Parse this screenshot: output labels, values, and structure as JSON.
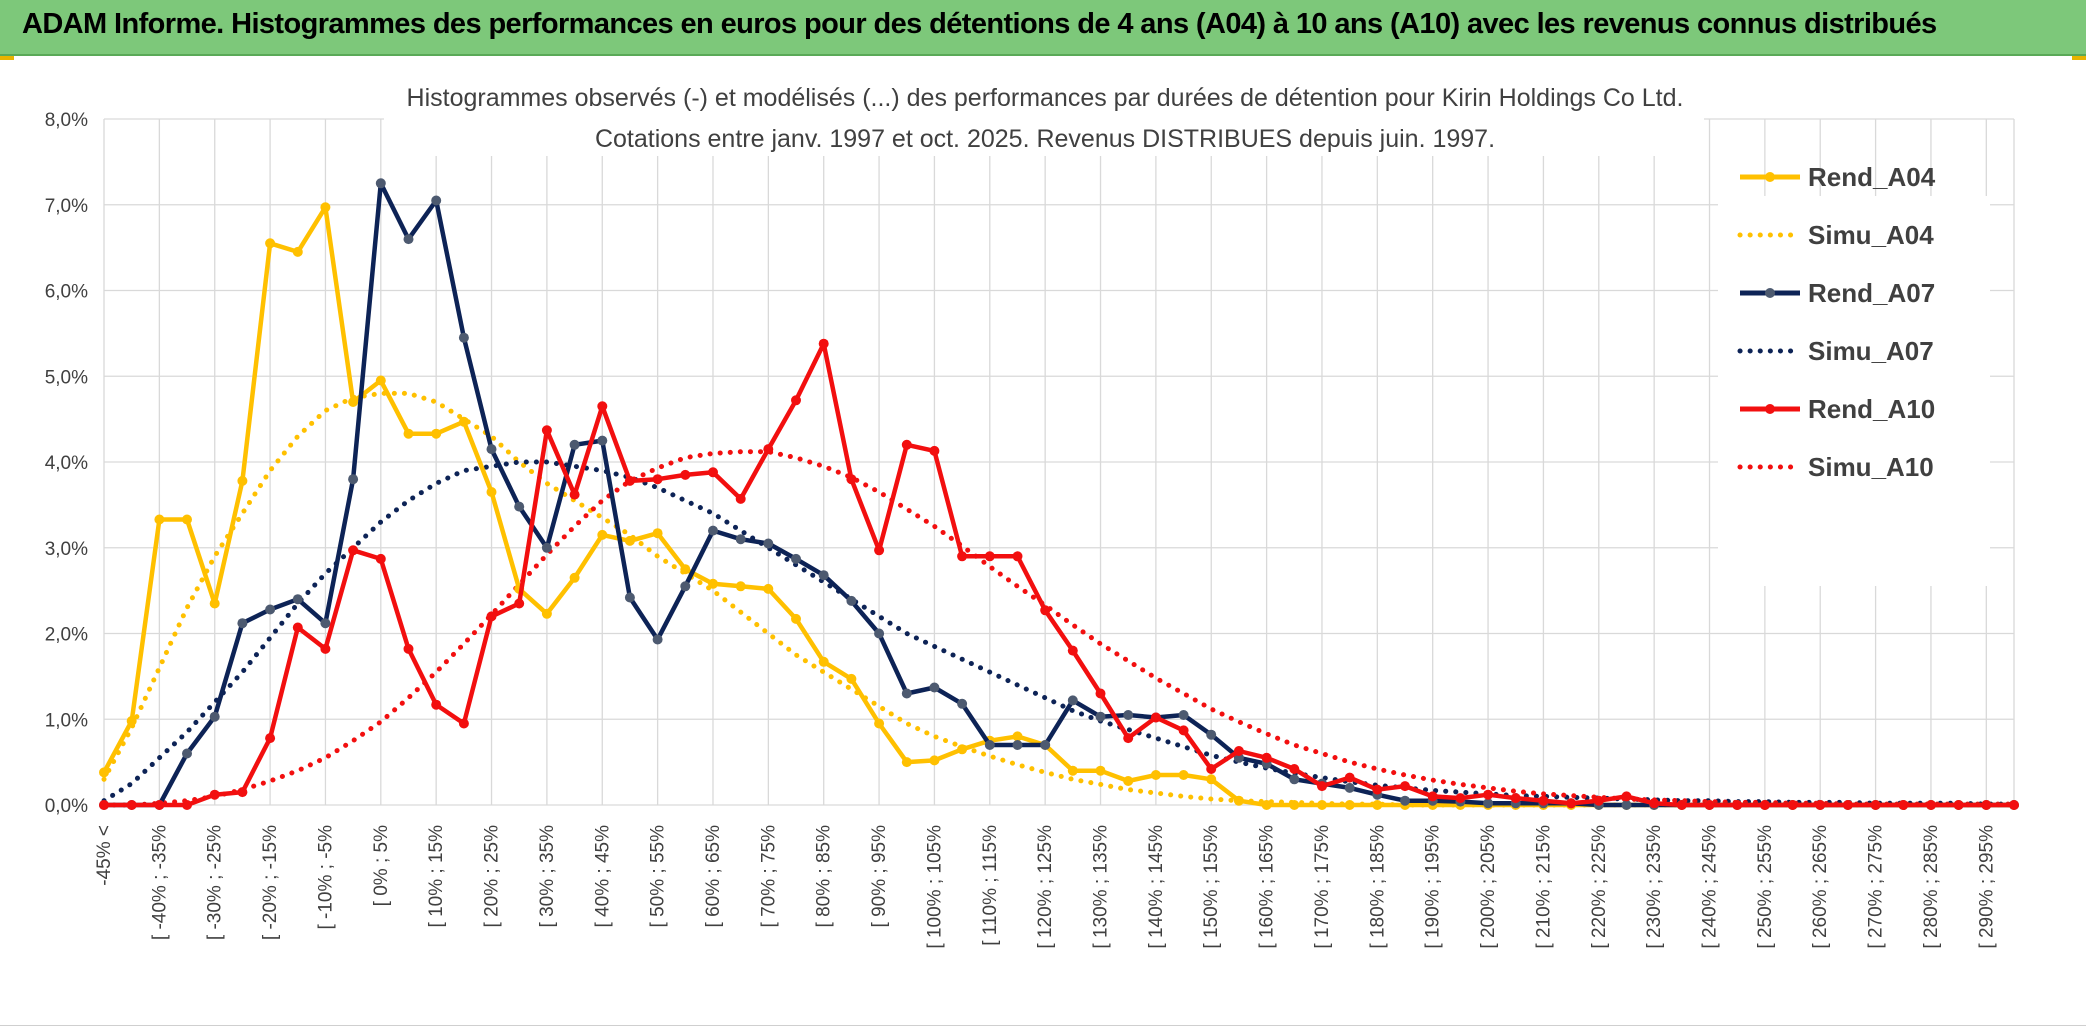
{
  "banner": {
    "title": "ADAM Informe. Histogrammes des performances en euros pour des détentions de 4 ans (A04) à 10 ans (A10) avec les revenus connus distribués"
  },
  "colors": {
    "banner_bg": "#7dc87a",
    "gold": "#ffc000",
    "navy": "#0d2356",
    "red": "#f20f0f",
    "grid": "#d9d9d9"
  },
  "chart_data": {
    "type": "line",
    "title_line1": "Histogrammes observés (-) et modélisés (...) des performances par durées de détention pour Kirin Holdings Co Ltd.",
    "title_line2": "Cotations entre janv. 1997 et oct. 2025. Revenus DISTRIBUES depuis juin. 1997.",
    "ylim": [
      0,
      8
    ],
    "y_ticks": [
      "0,0%",
      "1,0%",
      "2,0%",
      "3,0%",
      "4,0%",
      "5,0%",
      "6,0%",
      "7,0%",
      "8,0%"
    ],
    "grid": true,
    "legend_position": "right",
    "x_tick_labels": [
      "-45% <",
      "[ -40% ; -35%",
      "[ -30% ; -25%",
      "[ -20% ; -15%",
      "[ -10% ; -5%",
      "[ 0% ; 5%",
      "[ 10% ; 15%",
      "[ 20% ; 25%",
      "[ 30% ; 35%",
      "[ 40% ; 45%",
      "[ 50% ; 55%",
      "[ 60% ; 65%",
      "[ 70% ; 75%",
      "[ 80% ; 85%",
      "[ 90% ; 95%",
      "[ 100% ; 105%",
      "[ 110% ; 115%",
      "[ 120% ; 125%",
      "[ 130% ; 135%",
      "[ 140% ; 145%",
      "[ 150% ; 155%",
      "[ 160% ; 165%",
      "[ 170% ; 175%",
      "[ 180% ; 185%",
      "[ 190% ; 195%",
      "[ 200% ; 205%",
      "[ 210% ; 215%",
      "[ 220% ; 225%",
      "[ 230% ; 235%",
      "[ 240% ; 245%",
      "[ 250% ; 255%",
      "[ 260% ; 265%",
      "[ 270% ; 275%",
      "[ 280% ; 285%",
      "[ 290% ; 295%"
    ],
    "series": [
      {
        "name": "Rend_A04",
        "style": "solid",
        "color": "#ffc000",
        "markers": true,
        "values": [
          0.38,
          0.98,
          3.33,
          3.33,
          2.35,
          3.78,
          6.55,
          6.45,
          6.97,
          4.7,
          4.95,
          4.33,
          4.33,
          4.47,
          3.65,
          2.52,
          2.23,
          2.65,
          3.15,
          3.08,
          3.17,
          2.75,
          2.58,
          2.55,
          2.52,
          2.17,
          1.67,
          1.47,
          0.95,
          0.5,
          0.52,
          0.65,
          0.75,
          0.8,
          0.7,
          0.4,
          0.4,
          0.28,
          0.35,
          0.35,
          0.3,
          0.05,
          0.0,
          0.0,
          0.0,
          0.0,
          0.0,
          0.0,
          0.0,
          0.0,
          0.0,
          0.0,
          0.0,
          0.0,
          0.0,
          0.0,
          0.0,
          0.0,
          0.0,
          0.0,
          0.0,
          0.0,
          0.0,
          0.0,
          0.0,
          0.0,
          0.0,
          0.0,
          0.0,
          0.0
        ]
      },
      {
        "name": "Simu_A04",
        "style": "dotted",
        "color": "#ffc000",
        "markers": false,
        "values": [
          0.3,
          0.9,
          1.6,
          2.3,
          2.9,
          3.4,
          3.9,
          4.3,
          4.6,
          4.75,
          4.8,
          4.8,
          4.7,
          4.5,
          4.3,
          4.0,
          3.75,
          3.55,
          3.35,
          3.15,
          2.9,
          2.7,
          2.5,
          2.25,
          2.0,
          1.75,
          1.55,
          1.35,
          1.15,
          0.95,
          0.8,
          0.68,
          0.57,
          0.47,
          0.38,
          0.3,
          0.24,
          0.18,
          0.14,
          0.1,
          0.07,
          0.05,
          0.04,
          0.03,
          0.02,
          0.01,
          0.01,
          0.0,
          0.0,
          0.0,
          0.0,
          0.0,
          0.0,
          0.0,
          0.0,
          0.0,
          0.0,
          0.0,
          0.0,
          0.0,
          0.0,
          0.0,
          0.0,
          0.0,
          0.0,
          0.0,
          0.0,
          0.0,
          0.0,
          0.0
        ]
      },
      {
        "name": "Rend_A07",
        "style": "solid",
        "color": "#0d2356",
        "markers": true,
        "values": [
          0.0,
          0.0,
          0.0,
          0.6,
          1.03,
          2.12,
          2.28,
          2.4,
          2.12,
          3.8,
          7.25,
          6.6,
          7.05,
          5.45,
          4.15,
          3.48,
          3.0,
          4.2,
          4.25,
          2.42,
          1.93,
          2.55,
          3.2,
          3.1,
          3.05,
          2.87,
          2.68,
          2.38,
          2.0,
          1.3,
          1.37,
          1.18,
          0.7,
          0.7,
          0.7,
          1.22,
          1.03,
          1.05,
          1.02,
          1.05,
          0.82,
          0.55,
          0.48,
          0.3,
          0.25,
          0.2,
          0.12,
          0.05,
          0.05,
          0.04,
          0.02,
          0.02,
          0.02,
          0.02,
          0.0,
          0.0,
          0.0,
          0.0,
          0.0,
          0.0,
          0.0,
          0.0,
          0.0,
          0.0,
          0.0,
          0.0,
          0.0,
          0.0,
          0.0,
          0.0
        ]
      },
      {
        "name": "Simu_A07",
        "style": "dotted",
        "color": "#0d2356",
        "markers": false,
        "values": [
          0.05,
          0.25,
          0.55,
          0.85,
          1.2,
          1.55,
          1.95,
          2.35,
          2.7,
          3.0,
          3.3,
          3.55,
          3.75,
          3.9,
          3.95,
          4.0,
          4.0,
          3.95,
          3.9,
          3.82,
          3.7,
          3.55,
          3.4,
          3.2,
          3.0,
          2.8,
          2.6,
          2.4,
          2.2,
          2.0,
          1.85,
          1.7,
          1.55,
          1.4,
          1.25,
          1.1,
          0.98,
          0.88,
          0.78,
          0.68,
          0.58,
          0.5,
          0.43,
          0.37,
          0.32,
          0.27,
          0.23,
          0.2,
          0.17,
          0.15,
          0.13,
          0.11,
          0.1,
          0.09,
          0.08,
          0.07,
          0.06,
          0.05,
          0.05,
          0.04,
          0.04,
          0.03,
          0.03,
          0.03,
          0.02,
          0.02,
          0.02,
          0.02,
          0.01,
          0.01
        ]
      },
      {
        "name": "Rend_A10",
        "style": "solid",
        "color": "#f20f0f",
        "markers": true,
        "values": [
          0.0,
          0.0,
          0.0,
          0.0,
          0.12,
          0.15,
          0.78,
          2.07,
          1.82,
          2.97,
          2.87,
          1.82,
          1.17,
          0.95,
          2.2,
          2.35,
          4.37,
          3.62,
          4.65,
          3.78,
          3.8,
          3.85,
          3.88,
          3.57,
          4.15,
          4.72,
          5.38,
          3.8,
          2.97,
          4.2,
          4.13,
          2.9,
          2.9,
          2.9,
          2.27,
          1.8,
          1.3,
          0.78,
          1.02,
          0.87,
          0.42,
          0.63,
          0.55,
          0.42,
          0.22,
          0.32,
          0.18,
          0.22,
          0.1,
          0.08,
          0.12,
          0.08,
          0.05,
          0.02,
          0.05,
          0.1,
          0.02,
          0.0,
          0.0,
          0.0,
          0.0,
          0.0,
          0.0,
          0.0,
          0.0,
          0.0,
          0.0,
          0.0,
          0.0,
          0.0
        ]
      },
      {
        "name": "Simu_A10",
        "style": "dotted",
        "color": "#f20f0f",
        "markers": false,
        "values": [
          0.0,
          0.0,
          0.02,
          0.05,
          0.1,
          0.18,
          0.28,
          0.4,
          0.55,
          0.75,
          0.97,
          1.25,
          1.55,
          1.88,
          2.22,
          2.57,
          2.92,
          3.25,
          3.55,
          3.78,
          3.93,
          4.05,
          4.1,
          4.12,
          4.12,
          4.05,
          3.95,
          3.82,
          3.65,
          3.45,
          3.25,
          3.02,
          2.78,
          2.55,
          2.33,
          2.1,
          1.88,
          1.68,
          1.48,
          1.3,
          1.12,
          0.97,
          0.83,
          0.7,
          0.6,
          0.5,
          0.42,
          0.35,
          0.29,
          0.24,
          0.2,
          0.16,
          0.13,
          0.11,
          0.09,
          0.07,
          0.06,
          0.05,
          0.04,
          0.03,
          0.03,
          0.02,
          0.02,
          0.01,
          0.01,
          0.01,
          0.01,
          0.01,
          0.01,
          0.01
        ]
      }
    ]
  }
}
